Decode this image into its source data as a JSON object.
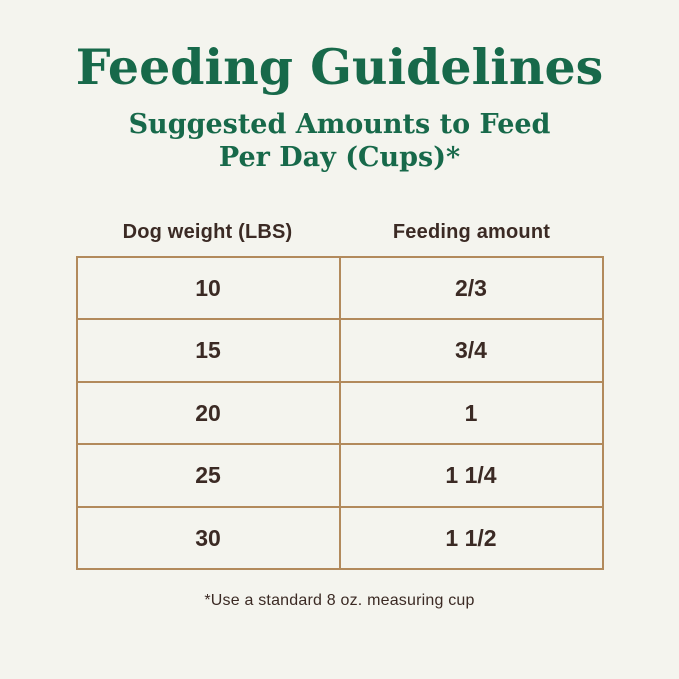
{
  "page": {
    "background_color": "#f4f4ee",
    "accent_green": "#17694a",
    "text_brown": "#3b2a24",
    "table_border_color": "#b28a5c"
  },
  "header": {
    "title": "Feeding Guidelines",
    "subtitle_line1": "Suggested Amounts to Feed",
    "subtitle_line2": "Per Day (Cups)*"
  },
  "table": {
    "columns": [
      "Dog weight (LBS)",
      "Feeding amount"
    ],
    "rows": [
      {
        "weight": "10",
        "amount": "2/3"
      },
      {
        "weight": "15",
        "amount": "3/4"
      },
      {
        "weight": "20",
        "amount": "1"
      },
      {
        "weight": "25",
        "amount": "1 1/4"
      },
      {
        "weight": "30",
        "amount": "1 1/2"
      }
    ]
  },
  "footnote": "*Use a standard 8 oz. measuring cup",
  "chart_data": {
    "type": "table",
    "title": "Feeding Guidelines",
    "subtitle": "Suggested Amounts to Feed Per Day (Cups)*",
    "columns": [
      "Dog weight (LBS)",
      "Feeding amount"
    ],
    "rows": [
      [
        "10",
        "2/3"
      ],
      [
        "15",
        "3/4"
      ],
      [
        "20",
        "1"
      ],
      [
        "25",
        "1 1/4"
      ],
      [
        "30",
        "1 1/2"
      ]
    ],
    "footnote": "*Use a standard 8 oz. measuring cup",
    "units": "cups per day",
    "layout": "centered single table, header labels outside bordered grid"
  }
}
